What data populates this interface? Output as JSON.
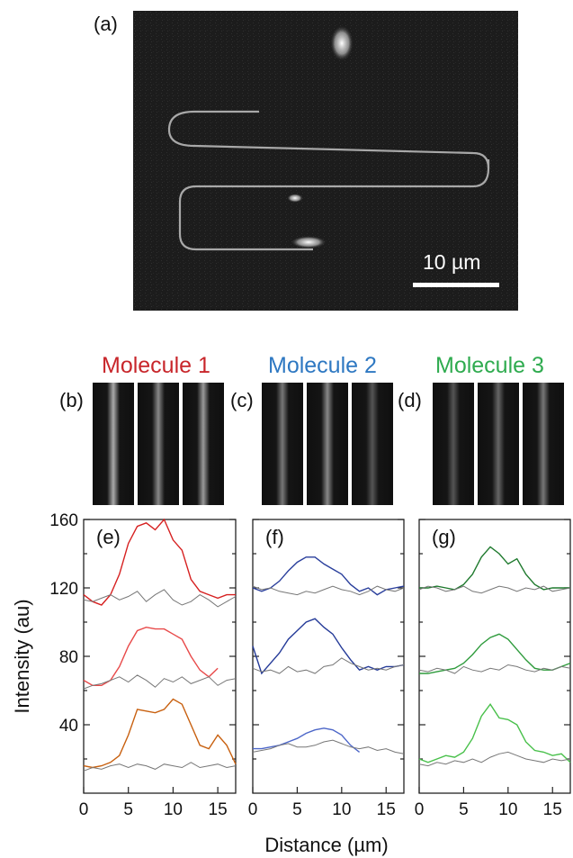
{
  "panels": {
    "a": "(a)",
    "b": "(b)",
    "c": "(c)",
    "d": "(d)",
    "e": "(e)",
    "f": "(f)",
    "g": "(g)"
  },
  "scale_bar_label": "10 µm",
  "molecules": [
    {
      "label": "Molecule 1",
      "color": "#c8262b"
    },
    {
      "label": "Molecule 2",
      "color": "#2e78c2"
    },
    {
      "label": "Molecule 3",
      "color": "#2fab4f"
    }
  ],
  "chart_data": [
    {
      "type": "line",
      "panel": "(e)",
      "ylabel": "Intensity (au)",
      "xlabel": "Distance (µm)",
      "xlim": [
        0,
        17
      ],
      "ylim": [
        0,
        160
      ],
      "xticks": [
        0,
        5,
        10,
        15
      ],
      "yticks": [
        40,
        80,
        120,
        160
      ],
      "series": [
        {
          "color": "#d62020",
          "x": [
            0,
            1,
            2,
            3,
            4,
            5,
            6,
            7,
            8,
            9,
            10,
            11,
            12,
            13,
            14,
            15,
            16,
            17
          ],
          "y": [
            116,
            112,
            110,
            116,
            128,
            146,
            156,
            158,
            154,
            160,
            148,
            142,
            125,
            118,
            116,
            114,
            116,
            116
          ]
        },
        {
          "color": "#777777",
          "x": [
            0,
            1,
            2,
            3,
            4,
            5,
            6,
            7,
            8,
            9,
            10,
            11,
            12,
            13,
            14,
            15,
            16,
            17
          ],
          "y": [
            113,
            112,
            114,
            116,
            113,
            115,
            118,
            112,
            116,
            119,
            113,
            110,
            112,
            116,
            113,
            109,
            112,
            115
          ]
        },
        {
          "color": "#e84a4a",
          "x": [
            0,
            1,
            2,
            3,
            4,
            5,
            6,
            7,
            8,
            9,
            10,
            11,
            12,
            13,
            14,
            15
          ],
          "y": [
            66,
            63,
            63,
            66,
            74,
            86,
            95,
            97,
            96,
            96,
            93,
            90,
            80,
            72,
            68,
            73
          ]
        },
        {
          "color": "#777777",
          "x": [
            0,
            1,
            2,
            3,
            4,
            5,
            6,
            7,
            8,
            9,
            10,
            11,
            12,
            13,
            14,
            15,
            16,
            17
          ],
          "y": [
            61,
            63,
            64,
            66,
            68,
            65,
            69,
            66,
            62,
            67,
            65,
            68,
            64,
            66,
            68,
            63,
            66,
            67
          ]
        },
        {
          "color": "#c8600f",
          "x": [
            0,
            1,
            2,
            3,
            4,
            5,
            6,
            7,
            8,
            9,
            10,
            11,
            12,
            13,
            14,
            15,
            16,
            17
          ],
          "y": [
            16,
            15,
            16,
            18,
            22,
            34,
            49,
            48,
            47,
            49,
            55,
            52,
            40,
            28,
            26,
            34,
            28,
            17
          ]
        },
        {
          "color": "#777777",
          "x": [
            0,
            1,
            2,
            3,
            4,
            5,
            6,
            7,
            8,
            9,
            10,
            11,
            12,
            13,
            14,
            15,
            16,
            17
          ],
          "y": [
            13,
            15,
            14,
            16,
            17,
            15,
            17,
            16,
            14,
            17,
            16,
            15,
            18,
            15,
            16,
            17,
            15,
            16
          ]
        }
      ]
    },
    {
      "type": "line",
      "panel": "(f)",
      "xlim": [
        0,
        17
      ],
      "ylim": [
        0,
        160
      ],
      "xticks": [
        0,
        5,
        10,
        15
      ],
      "series": [
        {
          "color": "#2a3f9c",
          "x": [
            0,
            1,
            2,
            3,
            4,
            5,
            6,
            7,
            8,
            9,
            10,
            11,
            12,
            13,
            14,
            15,
            16,
            17
          ],
          "y": [
            120,
            118,
            120,
            124,
            130,
            135,
            138,
            138,
            134,
            131,
            128,
            122,
            118,
            120,
            116,
            119,
            120,
            121
          ]
        },
        {
          "color": "#777777",
          "x": [
            0,
            1,
            2,
            3,
            4,
            5,
            6,
            7,
            8,
            9,
            10,
            11,
            12,
            13,
            14,
            15,
            16,
            17
          ],
          "y": [
            121,
            119,
            120,
            118,
            117,
            116,
            118,
            117,
            119,
            121,
            119,
            118,
            116,
            118,
            121,
            119,
            118,
            120
          ]
        },
        {
          "color": "#243a98",
          "x": [
            0,
            1,
            2,
            3,
            4,
            5,
            6,
            7,
            8,
            9,
            10,
            11,
            12,
            13,
            14,
            15,
            16,
            17
          ],
          "y": [
            86,
            70,
            76,
            82,
            90,
            95,
            100,
            102,
            97,
            93,
            85,
            78,
            72,
            74,
            72,
            74,
            74,
            75
          ]
        },
        {
          "color": "#777777",
          "x": [
            0,
            1,
            2,
            3,
            4,
            5,
            6,
            7,
            8,
            9,
            10,
            11,
            12,
            13,
            14,
            15,
            16,
            17
          ],
          "y": [
            73,
            71,
            72,
            70,
            74,
            71,
            72,
            70,
            74,
            75,
            79,
            76,
            74,
            72,
            73,
            72,
            74,
            75
          ]
        },
        {
          "color": "#4c66c8",
          "x": [
            0,
            1,
            2,
            3,
            4,
            5,
            6,
            7,
            8,
            9,
            10,
            11,
            12
          ],
          "y": [
            26,
            26,
            27,
            28,
            30,
            32,
            35,
            37,
            38,
            37,
            34,
            28,
            24
          ]
        },
        {
          "color": "#777777",
          "x": [
            0,
            1,
            2,
            3,
            4,
            5,
            6,
            7,
            8,
            9,
            10,
            11,
            12,
            13,
            14,
            15,
            16,
            17
          ],
          "y": [
            24,
            25,
            26,
            28,
            29,
            27,
            27,
            28,
            30,
            31,
            29,
            27,
            26,
            27,
            25,
            26,
            24,
            23
          ]
        }
      ]
    },
    {
      "type": "line",
      "panel": "(g)",
      "xlim": [
        0,
        17
      ],
      "ylim": [
        0,
        160
      ],
      "xticks": [
        0,
        5,
        10,
        15
      ],
      "series": [
        {
          "color": "#1f7a2e",
          "x": [
            0,
            1,
            2,
            3,
            4,
            5,
            6,
            7,
            8,
            9,
            10,
            11,
            12,
            13,
            14,
            15,
            16,
            17
          ],
          "y": [
            120,
            120,
            121,
            120,
            119,
            122,
            128,
            138,
            144,
            140,
            134,
            137,
            128,
            122,
            119,
            120,
            120,
            120
          ]
        },
        {
          "color": "#777777",
          "x": [
            0,
            1,
            2,
            3,
            4,
            5,
            6,
            7,
            8,
            9,
            10,
            11,
            12,
            13,
            14,
            15,
            16,
            17
          ],
          "y": [
            119,
            121,
            120,
            118,
            119,
            121,
            118,
            117,
            119,
            121,
            120,
            118,
            120,
            119,
            121,
            118,
            119,
            120
          ]
        },
        {
          "color": "#2e9b3c",
          "x": [
            0,
            1,
            2,
            3,
            4,
            5,
            6,
            7,
            8,
            9,
            10,
            11,
            12,
            13,
            14,
            15,
            16,
            17
          ],
          "y": [
            70,
            70,
            71,
            72,
            73,
            76,
            81,
            87,
            91,
            93,
            90,
            84,
            78,
            73,
            72,
            72,
            74,
            76
          ]
        },
        {
          "color": "#777777",
          "x": [
            0,
            1,
            2,
            3,
            4,
            5,
            6,
            7,
            8,
            9,
            10,
            11,
            12,
            13,
            14,
            15,
            16,
            17
          ],
          "y": [
            72,
            71,
            73,
            72,
            70,
            74,
            72,
            71,
            73,
            72,
            75,
            74,
            72,
            71,
            73,
            72,
            74,
            73
          ]
        },
        {
          "color": "#48c04a",
          "x": [
            0,
            1,
            2,
            3,
            4,
            5,
            6,
            7,
            8,
            9,
            10,
            11,
            12,
            13,
            14,
            15,
            16,
            17
          ],
          "y": [
            20,
            18,
            20,
            22,
            21,
            24,
            32,
            45,
            52,
            44,
            43,
            40,
            30,
            25,
            24,
            22,
            23,
            18
          ]
        },
        {
          "color": "#777777",
          "x": [
            0,
            1,
            2,
            3,
            4,
            5,
            6,
            7,
            8,
            9,
            10,
            11,
            12,
            13,
            14,
            15,
            16,
            17
          ],
          "y": [
            17,
            16,
            18,
            17,
            19,
            18,
            20,
            18,
            21,
            23,
            24,
            22,
            20,
            19,
            18,
            20,
            19,
            20
          ]
        }
      ]
    }
  ]
}
